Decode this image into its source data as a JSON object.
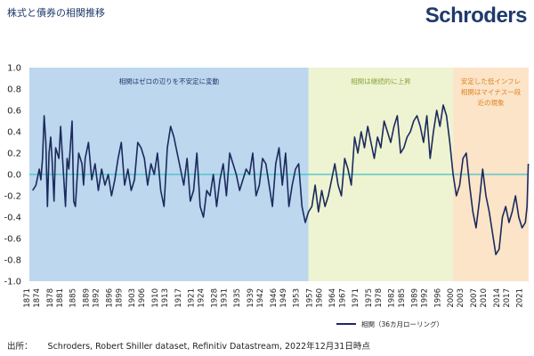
{
  "header": {
    "title": "株式と債券の相関推移",
    "brand": "Schroders"
  },
  "footer": {
    "source_label": "出所：",
    "source_text": "Schroders, Robert Shiller dataset, Refinitiv Datastream, 2022年12月31日時点"
  },
  "chart_data": {
    "type": "line",
    "title": "株式と債券の相関推移",
    "xlabel": "",
    "ylabel": "",
    "xlim": [
      1871,
      2023
    ],
    "ylim": [
      -1.0,
      1.0
    ],
    "y_ticks": [
      "1.0",
      "0.8",
      "0.6",
      "0.4",
      "0.2",
      "0.0",
      "-0.2",
      "-0.4",
      "-0.6",
      "-0.8",
      "-1.0"
    ],
    "x_ticks": [
      "1871",
      "1874",
      "1878",
      "1881",
      "1885",
      "1889",
      "1892",
      "1896",
      "1899",
      "1903",
      "1906",
      "1910",
      "1913",
      "1917",
      "1921",
      "1924",
      "1928",
      "1931",
      "1935",
      "1939",
      "1942",
      "1946",
      "1949",
      "1953",
      "1957",
      "1960",
      "1964",
      "1967",
      "1971",
      "1975",
      "1978",
      "1982",
      "1985",
      "1989",
      "1992",
      "1996",
      "2000",
      "2003",
      "2007",
      "2010",
      "2014",
      "2017",
      "2021"
    ],
    "zero_line_color": "#3fc1c9",
    "regions": [
      {
        "start": 1871,
        "end": 1956,
        "color": "#bcd7ee",
        "label_lines": [
          "相関はゼロの辺りを不安定に変動"
        ],
        "label_color": "#1f3a6b"
      },
      {
        "start": 1956,
        "end": 2000,
        "color": "#eef3d2",
        "label_lines": [
          "相関は継続的に上昇"
        ],
        "label_color": "#8aa63a"
      },
      {
        "start": 2000,
        "end": 2023,
        "color": "#fbe4c8",
        "label_lines": [
          "安定した低インフレ",
          "相関はマイナス一段",
          "近の現象"
        ],
        "label_color": "#e0821f"
      }
    ],
    "legend_position": "bottom-right",
    "series": [
      {
        "name": "相関（36カ月ローリング）",
        "color": "#1b2a5c",
        "x": [
          1872,
          1873,
          1874,
          1874.5,
          1875,
          1875.5,
          1876,
          1876.5,
          1877,
          1877.5,
          1878,
          1878.5,
          1879,
          1880,
          1880.5,
          1881,
          1882,
          1882.5,
          1883,
          1884,
          1884.5,
          1885,
          1886,
          1887,
          1887.5,
          1888,
          1889,
          1890,
          1891,
          1892,
          1893,
          1894,
          1895,
          1896,
          1897,
          1898,
          1899,
          1900,
          1901,
          1902,
          1903,
          1904,
          1905,
          1906,
          1907,
          1908,
          1909,
          1910,
          1911,
          1912,
          1913,
          1914,
          1915,
          1916,
          1917,
          1918,
          1919,
          1920,
          1921,
          1922,
          1923,
          1924,
          1925,
          1926,
          1927,
          1928,
          1929,
          1930,
          1931,
          1932,
          1933,
          1934,
          1935,
          1936,
          1937,
          1938,
          1939,
          1940,
          1941,
          1942,
          1943,
          1944,
          1945,
          1946,
          1947,
          1948,
          1949,
          1950,
          1951,
          1952,
          1953,
          1954,
          1955,
          1956,
          1957,
          1958,
          1959,
          1960,
          1961,
          1962,
          1963,
          1964,
          1965,
          1966,
          1967,
          1968,
          1969,
          1970,
          1971,
          1972,
          1973,
          1974,
          1975,
          1976,
          1977,
          1978,
          1979,
          1980,
          1981,
          1982,
          1983,
          1984,
          1985,
          1986,
          1987,
          1988,
          1989,
          1990,
          1991,
          1992,
          1993,
          1994,
          1995,
          1996,
          1997,
          1998,
          1999,
          2000,
          2001,
          2002,
          2003,
          2004,
          2005,
          2006,
          2007,
          2008,
          2009,
          2010,
          2011,
          2012,
          2013,
          2014,
          2015,
          2016,
          2017,
          2018,
          2019,
          2020,
          2021,
          2022,
          2022.5,
          2022.9
        ],
        "y": [
          -0.15,
          -0.1,
          0.05,
          -0.05,
          0.15,
          0.55,
          0.3,
          -0.3,
          0.2,
          0.35,
          0.1,
          -0.25,
          0.25,
          0.15,
          0.45,
          0.2,
          -0.3,
          0.15,
          0.05,
          0.5,
          -0.25,
          -0.3,
          0.2,
          0.1,
          -0.1,
          0.15,
          0.3,
          -0.05,
          0.1,
          -0.15,
          0.05,
          -0.1,
          0.0,
          -0.2,
          -0.05,
          0.15,
          0.3,
          -0.1,
          0.05,
          -0.15,
          -0.05,
          0.3,
          0.25,
          0.15,
          -0.1,
          0.1,
          0.0,
          0.2,
          -0.15,
          -0.3,
          0.25,
          0.45,
          0.35,
          0.2,
          0.05,
          -0.1,
          0.15,
          -0.25,
          -0.15,
          0.2,
          -0.3,
          -0.4,
          -0.15,
          -0.2,
          0.0,
          -0.3,
          -0.05,
          0.1,
          -0.2,
          0.2,
          0.1,
          0.0,
          -0.15,
          -0.05,
          0.05,
          0.0,
          0.2,
          -0.2,
          -0.1,
          0.15,
          0.1,
          -0.1,
          -0.3,
          0.1,
          0.25,
          -0.1,
          0.2,
          -0.3,
          -0.1,
          0.05,
          0.1,
          -0.3,
          -0.45,
          -0.35,
          -0.3,
          -0.1,
          -0.35,
          -0.15,
          -0.3,
          -0.2,
          -0.05,
          0.1,
          -0.1,
          -0.2,
          0.15,
          0.05,
          -0.1,
          0.35,
          0.2,
          0.4,
          0.25,
          0.45,
          0.3,
          0.15,
          0.35,
          0.25,
          0.5,
          0.4,
          0.3,
          0.45,
          0.55,
          0.2,
          0.25,
          0.35,
          0.4,
          0.5,
          0.55,
          0.45,
          0.3,
          0.55,
          0.15,
          0.4,
          0.6,
          0.45,
          0.65,
          0.55,
          0.3,
          0.0,
          -0.2,
          -0.1,
          0.15,
          0.2,
          -0.1,
          -0.35,
          -0.5,
          -0.25,
          0.05,
          -0.2,
          -0.35,
          -0.55,
          -0.75,
          -0.7,
          -0.4,
          -0.3,
          -0.45,
          -0.35,
          -0.2,
          -0.4,
          -0.5,
          -0.45,
          -0.3,
          0.1
        ]
      }
    ]
  }
}
